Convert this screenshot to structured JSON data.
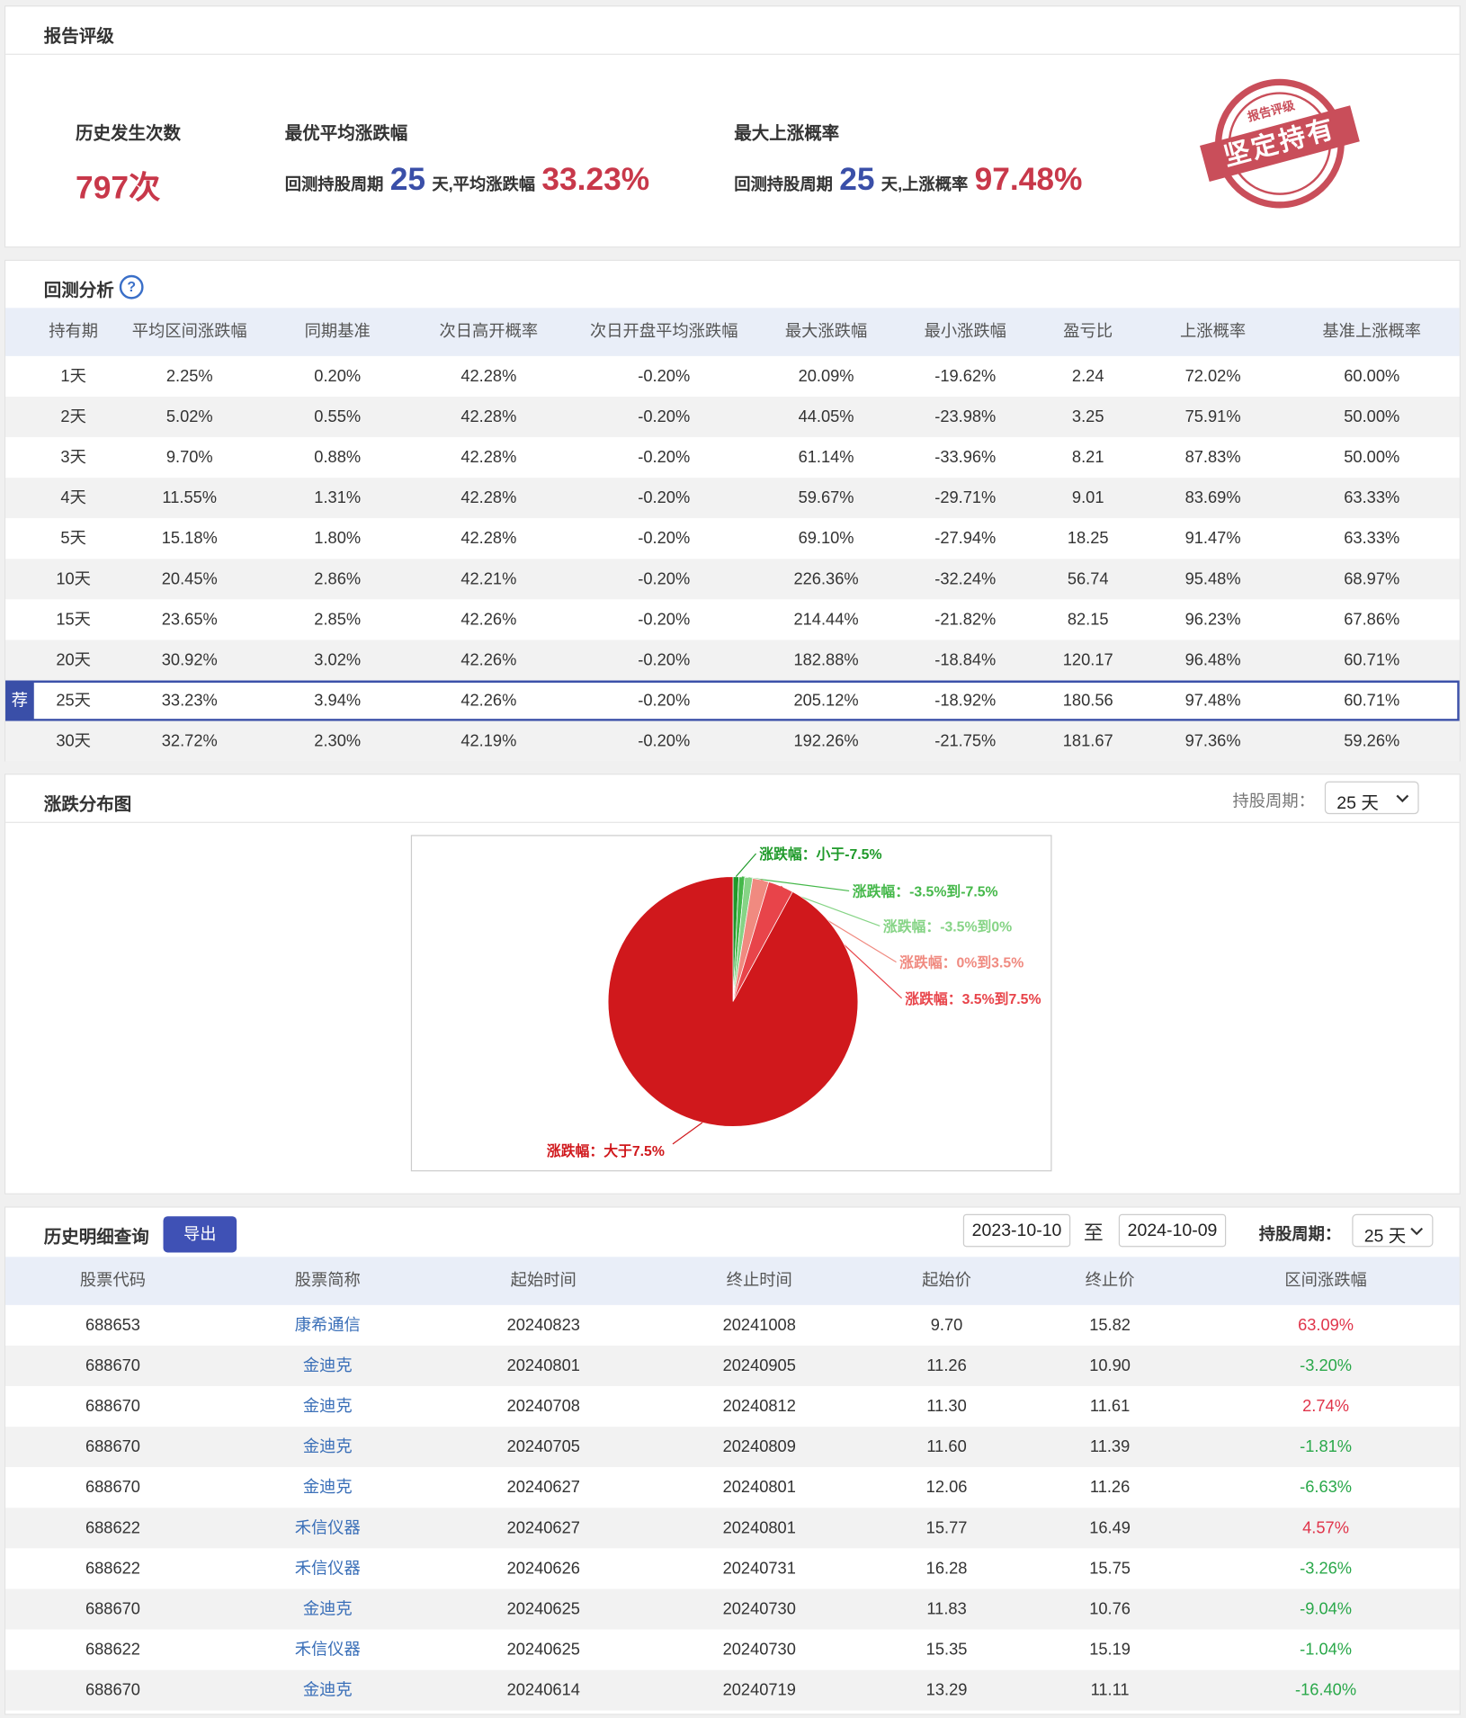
{
  "report_rating": {
    "title": "报告评级",
    "occurrences": {
      "label": "历史发生次数",
      "value": "797次"
    },
    "best_avg": {
      "label": "最优平均涨跌幅",
      "prefix": "回测持股周期",
      "days": "25",
      "mid": "天,平均涨跌幅",
      "value": "33.23%"
    },
    "max_up": {
      "label": "最大上涨概率",
      "prefix": "回测持股周期",
      "days": "25",
      "mid": "天,上涨概率",
      "value": "97.48%"
    },
    "stamp": {
      "top": "报告评级",
      "main": "坚定持有"
    }
  },
  "backtest": {
    "title": "回测分析",
    "help": "?",
    "columns": [
      "持有期",
      "平均区间涨跌幅",
      "同期基准",
      "次日高开概率",
      "次日开盘平均涨跌幅",
      "最大涨跌幅",
      "最小涨跌幅",
      "盈亏比",
      "上涨概率",
      "基准上涨概率"
    ],
    "rows": [
      {
        "cells": [
          "1天",
          "2.25%",
          "0.20%",
          "42.28%",
          "-0.20%",
          "20.09%",
          "-19.62%",
          "2.24",
          "72.02%",
          "60.00%"
        ]
      },
      {
        "cells": [
          "2天",
          "5.02%",
          "0.55%",
          "42.28%",
          "-0.20%",
          "44.05%",
          "-23.98%",
          "3.25",
          "75.91%",
          "50.00%"
        ]
      },
      {
        "cells": [
          "3天",
          "9.70%",
          "0.88%",
          "42.28%",
          "-0.20%",
          "61.14%",
          "-33.96%",
          "8.21",
          "87.83%",
          "50.00%"
        ]
      },
      {
        "cells": [
          "4天",
          "11.55%",
          "1.31%",
          "42.28%",
          "-0.20%",
          "59.67%",
          "-29.71%",
          "9.01",
          "83.69%",
          "63.33%"
        ]
      },
      {
        "cells": [
          "5天",
          "15.18%",
          "1.80%",
          "42.28%",
          "-0.20%",
          "69.10%",
          "-27.94%",
          "18.25",
          "91.47%",
          "63.33%"
        ]
      },
      {
        "cells": [
          "10天",
          "20.45%",
          "2.86%",
          "42.21%",
          "-0.20%",
          "226.36%",
          "-32.24%",
          "56.74",
          "95.48%",
          "68.97%"
        ]
      },
      {
        "cells": [
          "15天",
          "23.65%",
          "2.85%",
          "42.26%",
          "-0.20%",
          "214.44%",
          "-21.82%",
          "82.15",
          "96.23%",
          "67.86%"
        ]
      },
      {
        "cells": [
          "20天",
          "30.92%",
          "3.02%",
          "42.26%",
          "-0.20%",
          "182.88%",
          "-18.84%",
          "120.17",
          "96.48%",
          "60.71%"
        ]
      },
      {
        "cells": [
          "25天",
          "33.23%",
          "3.94%",
          "42.26%",
          "-0.20%",
          "205.12%",
          "-18.92%",
          "180.56",
          "97.48%",
          "60.71%"
        ],
        "badge": "荐"
      },
      {
        "cells": [
          "30天",
          "32.72%",
          "2.30%",
          "42.19%",
          "-0.20%",
          "192.26%",
          "-21.75%",
          "181.67",
          "97.36%",
          "59.26%"
        ]
      }
    ]
  },
  "distribution": {
    "title": "涨跌分布图",
    "period_label": "持股周期：",
    "period": "25 天"
  },
  "chart_data": {
    "type": "pie",
    "categories": [
      "涨跌幅：小于-7.5%",
      "涨跌幅：-3.5%到-7.5%",
      "涨跌幅：-3.5%到0%",
      "涨跌幅：0%到3.5%",
      "涨跌幅：3.5%到7.5%",
      "涨跌幅：大于7.5%"
    ],
    "values": [
      0.75,
      0.75,
      1.02,
      2.1,
      3.3,
      92.08
    ],
    "colors": [
      "#1f9a2a",
      "#45b84a",
      "#86d486",
      "#f08a80",
      "#e8444a",
      "#d0181c"
    ]
  },
  "history": {
    "title": "历史明细查询",
    "export": "导出",
    "date_from": "2023-10-10",
    "date_sep": "至",
    "date_to": "2024-10-09",
    "period_label": "持股周期：",
    "period": "25 天",
    "columns": [
      "股票代码",
      "股票简称",
      "起始时间",
      "终止时间",
      "起始价",
      "终止价",
      "区间涨跌幅"
    ],
    "rows": [
      [
        "688653",
        "康希通信",
        "20240823",
        "20241008",
        "9.70",
        "15.82",
        "63.09%"
      ],
      [
        "688670",
        "金迪克",
        "20240801",
        "20240905",
        "11.26",
        "10.90",
        "-3.20%"
      ],
      [
        "688670",
        "金迪克",
        "20240708",
        "20240812",
        "11.30",
        "11.61",
        "2.74%"
      ],
      [
        "688670",
        "金迪克",
        "20240705",
        "20240809",
        "11.60",
        "11.39",
        "-1.81%"
      ],
      [
        "688670",
        "金迪克",
        "20240627",
        "20240801",
        "12.06",
        "11.26",
        "-6.63%"
      ],
      [
        "688622",
        "禾信仪器",
        "20240627",
        "20240801",
        "15.77",
        "16.49",
        "4.57%"
      ],
      [
        "688622",
        "禾信仪器",
        "20240626",
        "20240731",
        "16.28",
        "15.75",
        "-3.26%"
      ],
      [
        "688670",
        "金迪克",
        "20240625",
        "20240730",
        "11.83",
        "10.76",
        "-9.04%"
      ],
      [
        "688622",
        "禾信仪器",
        "20240625",
        "20240730",
        "15.35",
        "15.19",
        "-1.04%"
      ],
      [
        "688670",
        "金迪克",
        "20240614",
        "20240719",
        "13.29",
        "11.11",
        "-16.40%"
      ]
    ]
  }
}
